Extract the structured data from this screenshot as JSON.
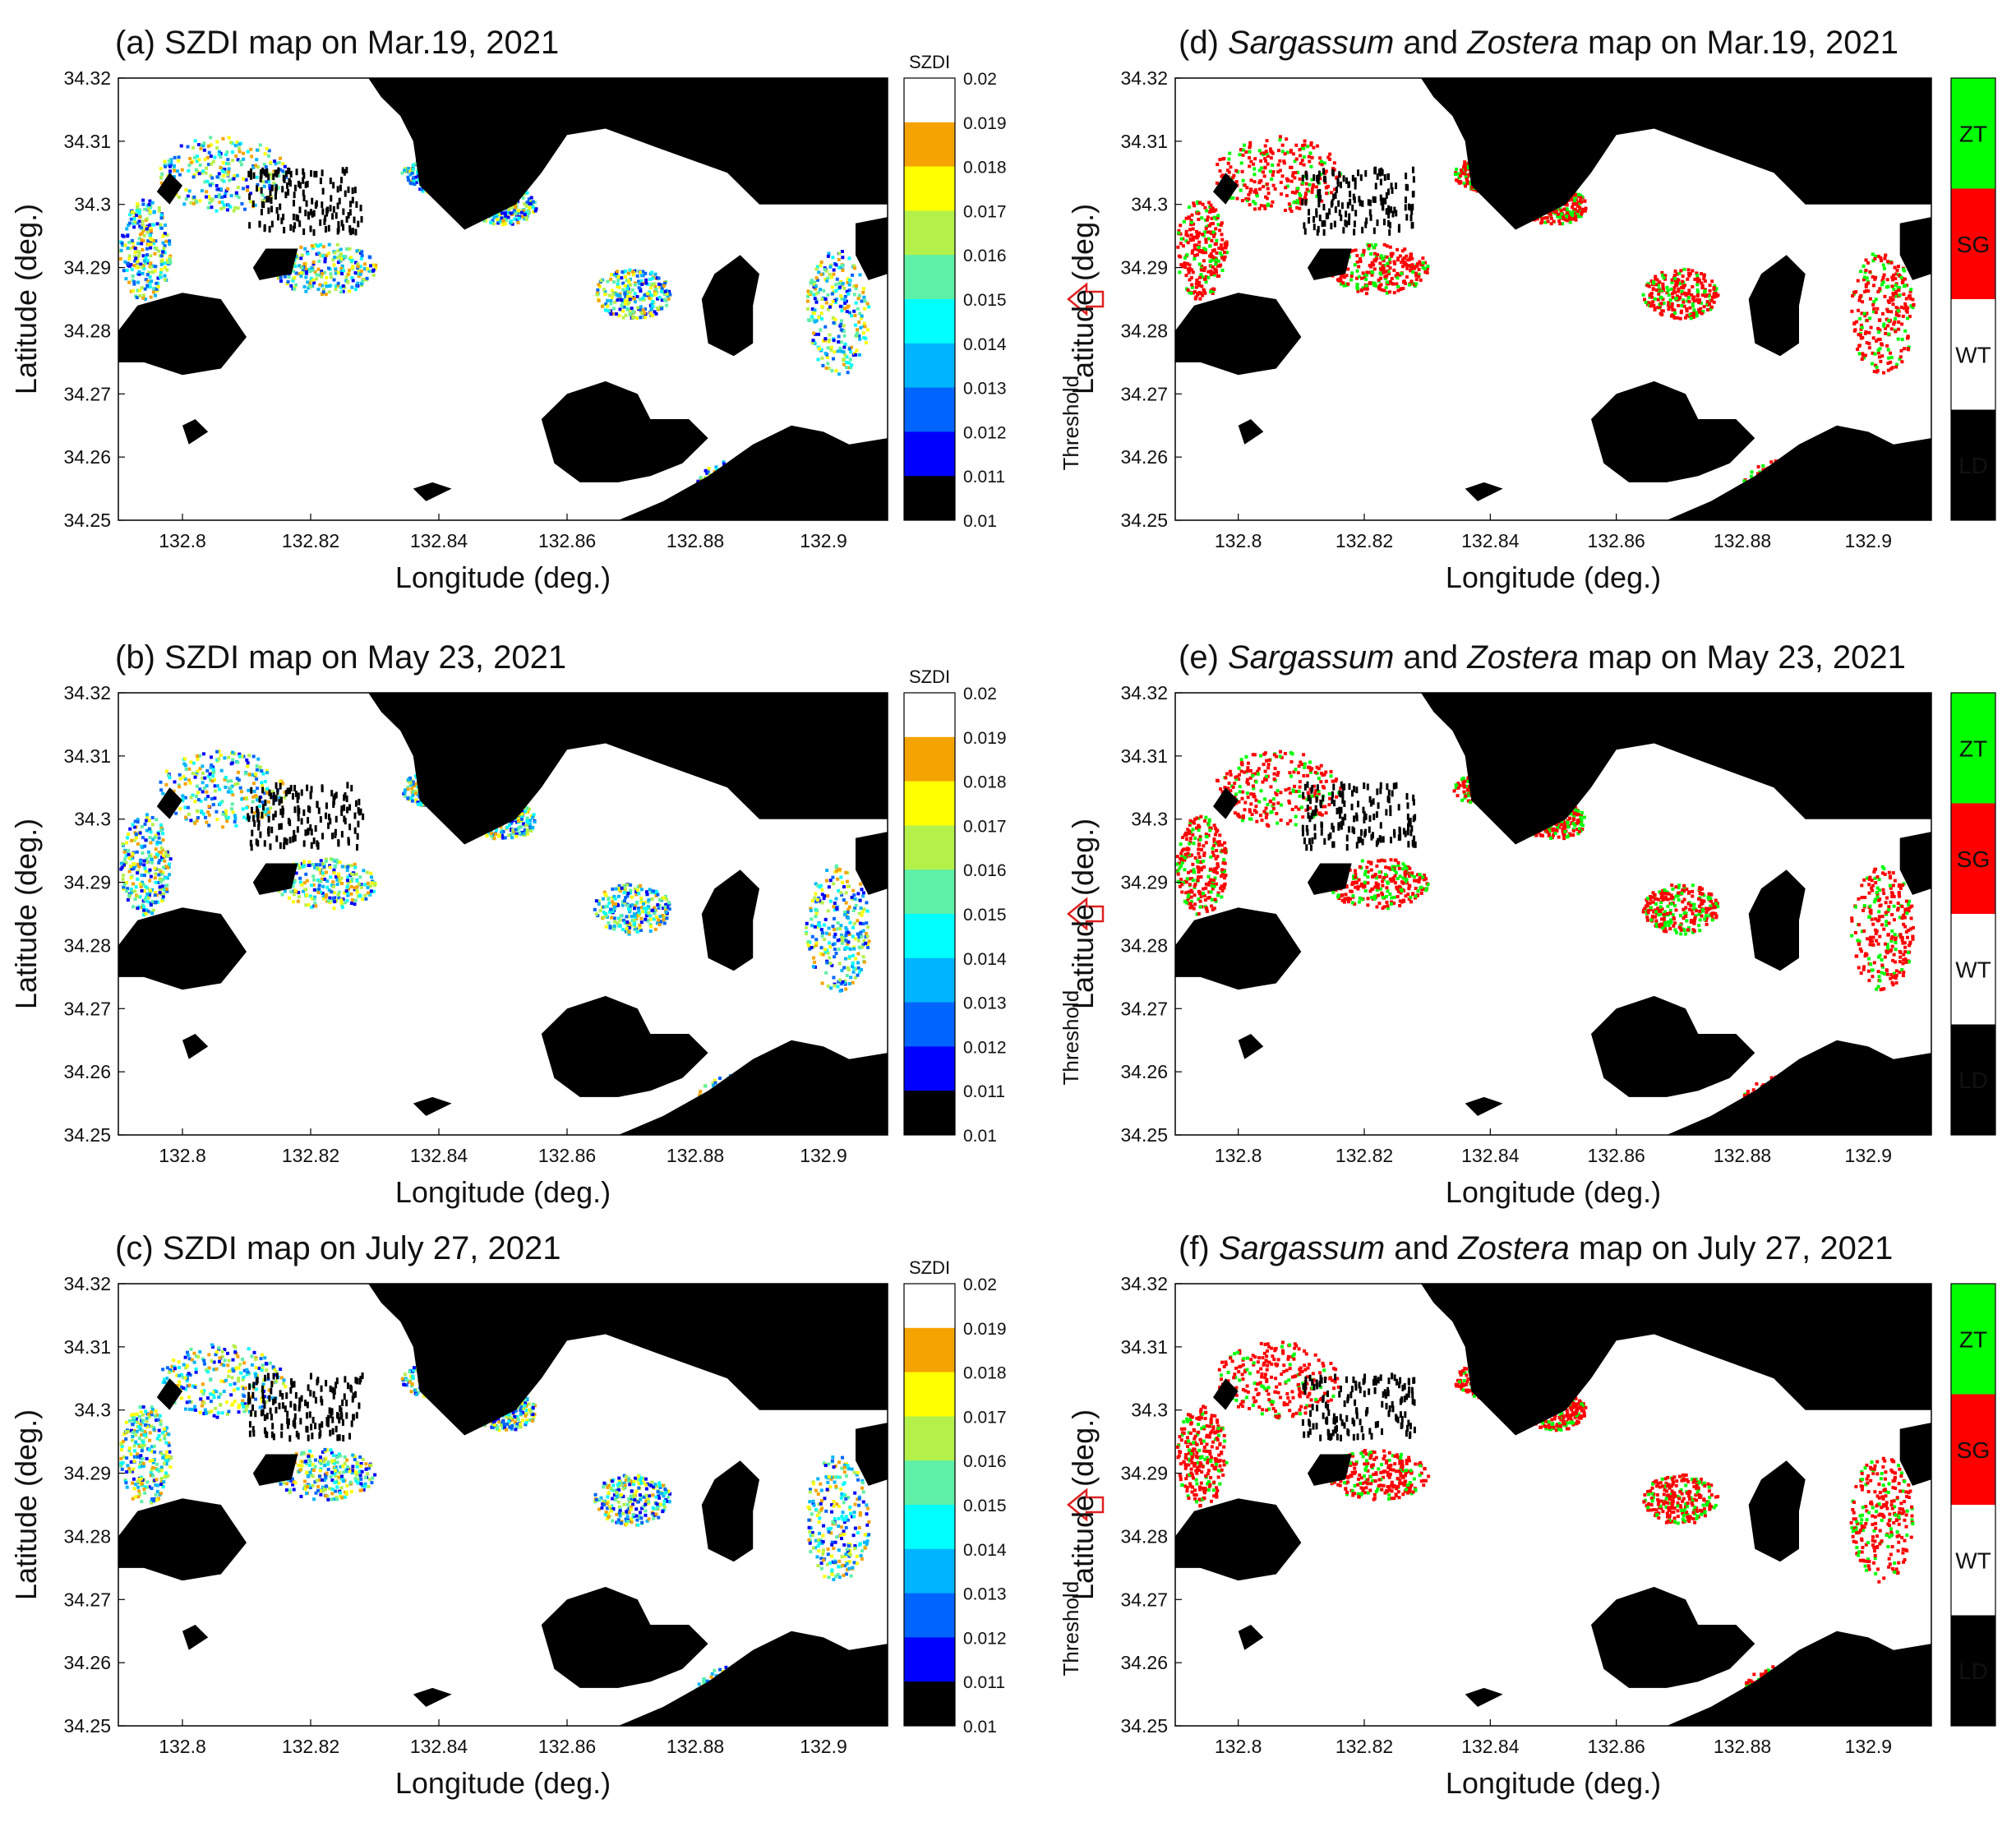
{
  "figure": {
    "panels": [
      {
        "id": "a",
        "title": "(a) SZDI map on Mar.19, 2021",
        "kind": "szdi"
      },
      {
        "id": "b",
        "title": "(b) SZDI map on May 23, 2021",
        "kind": "szdi"
      },
      {
        "id": "c",
        "title": "(c) SZDI map on July 27, 2021",
        "kind": "szdi"
      },
      {
        "id": "d",
        "title_parts": [
          "(d) ",
          "Sargassum",
          " and ",
          "Zostera",
          " map on Mar.19, 2021"
        ],
        "kind": "class"
      },
      {
        "id": "e",
        "title_parts": [
          "(e) ",
          "Sargassum",
          " and ",
          "Zostera",
          " map on May 23, 2021"
        ],
        "kind": "class"
      },
      {
        "id": "f",
        "title_parts": [
          "(f) ",
          "Sargassum",
          " and ",
          "Zostera",
          " map on July 27, 2021"
        ],
        "kind": "class"
      }
    ],
    "xlabel": "Longitude (deg.)",
    "ylabel": "Latitude (deg.)",
    "x_ticks": [
      "132.8",
      "132.82",
      "132.84",
      "132.86",
      "132.88",
      "132.9"
    ],
    "y_ticks": [
      "34.32",
      "34.31",
      "34.3",
      "34.29",
      "34.28",
      "34.27",
      "34.26",
      "34.25"
    ],
    "colorbar_title": "SZDI",
    "threshold_label": "Threshold",
    "colorbar_ticks": [
      "0.02",
      "0.019",
      "0.018",
      "0.017",
      "0.016",
      "0.015",
      "0.014",
      "0.013",
      "0.012",
      "0.011",
      "0.01"
    ],
    "colorbar_colors": [
      "#ffffff",
      "#f5a300",
      "#ffff00",
      "#b4f04a",
      "#5ef0a6",
      "#00ffff",
      "#00b4ff",
      "#0064ff",
      "#0000ff",
      "#000000"
    ],
    "class_legend": [
      "ZT",
      "SG",
      "WT",
      "LD"
    ],
    "class_colors": [
      "#00ff00",
      "#ff0000",
      "#ffffff",
      "#000000"
    ],
    "arrow_color": "#e02020"
  },
  "chart_data": [
    {
      "type": "heatmap",
      "title": "(a) SZDI map on Mar.19, 2021",
      "xlabel": "Longitude (deg.)",
      "ylabel": "Latitude (deg.)",
      "xlim": [
        132.79,
        132.91
      ],
      "ylim": [
        34.25,
        34.32
      ],
      "colorbar": {
        "label": "SZDI",
        "range": [
          0.01,
          0.02
        ],
        "threshold": 0.015
      }
    },
    {
      "type": "heatmap",
      "title": "(b) SZDI map on May 23, 2021",
      "xlabel": "Longitude (deg.)",
      "ylabel": "Latitude (deg.)",
      "xlim": [
        132.79,
        132.91
      ],
      "ylim": [
        34.25,
        34.32
      ],
      "colorbar": {
        "label": "SZDI",
        "range": [
          0.01,
          0.02
        ],
        "threshold": 0.015
      }
    },
    {
      "type": "heatmap",
      "title": "(c) SZDI map on July 27, 2021",
      "xlabel": "Longitude (deg.)",
      "ylabel": "Latitude (deg.)",
      "xlim": [
        132.79,
        132.91
      ],
      "ylim": [
        34.25,
        34.32
      ],
      "colorbar": {
        "label": "SZDI",
        "range": [
          0.01,
          0.02
        ],
        "threshold": 0.015
      }
    },
    {
      "type": "heatmap",
      "title": "(d) Sargassum and Zostera map on Mar.19, 2021",
      "xlabel": "Longitude (deg.)",
      "ylabel": "Latitude (deg.)",
      "xlim": [
        132.79,
        132.91
      ],
      "ylim": [
        34.25,
        34.32
      ],
      "classes": [
        "ZT",
        "SG",
        "WT",
        "LD"
      ]
    },
    {
      "type": "heatmap",
      "title": "(e) Sargassum and Zostera map on May 23, 2021",
      "xlabel": "Longitude (deg.)",
      "ylabel": "Latitude (deg.)",
      "xlim": [
        132.79,
        132.91
      ],
      "ylim": [
        34.25,
        34.32
      ],
      "classes": [
        "ZT",
        "SG",
        "WT",
        "LD"
      ]
    },
    {
      "type": "heatmap",
      "title": "(f) Sargassum and Zostera map on July 27, 2021",
      "xlabel": "Longitude (deg.)",
      "ylabel": "Latitude (deg.)",
      "xlim": [
        132.79,
        132.91
      ],
      "ylim": [
        34.25,
        34.32
      ],
      "classes": [
        "ZT",
        "SG",
        "WT",
        "LD"
      ]
    }
  ]
}
